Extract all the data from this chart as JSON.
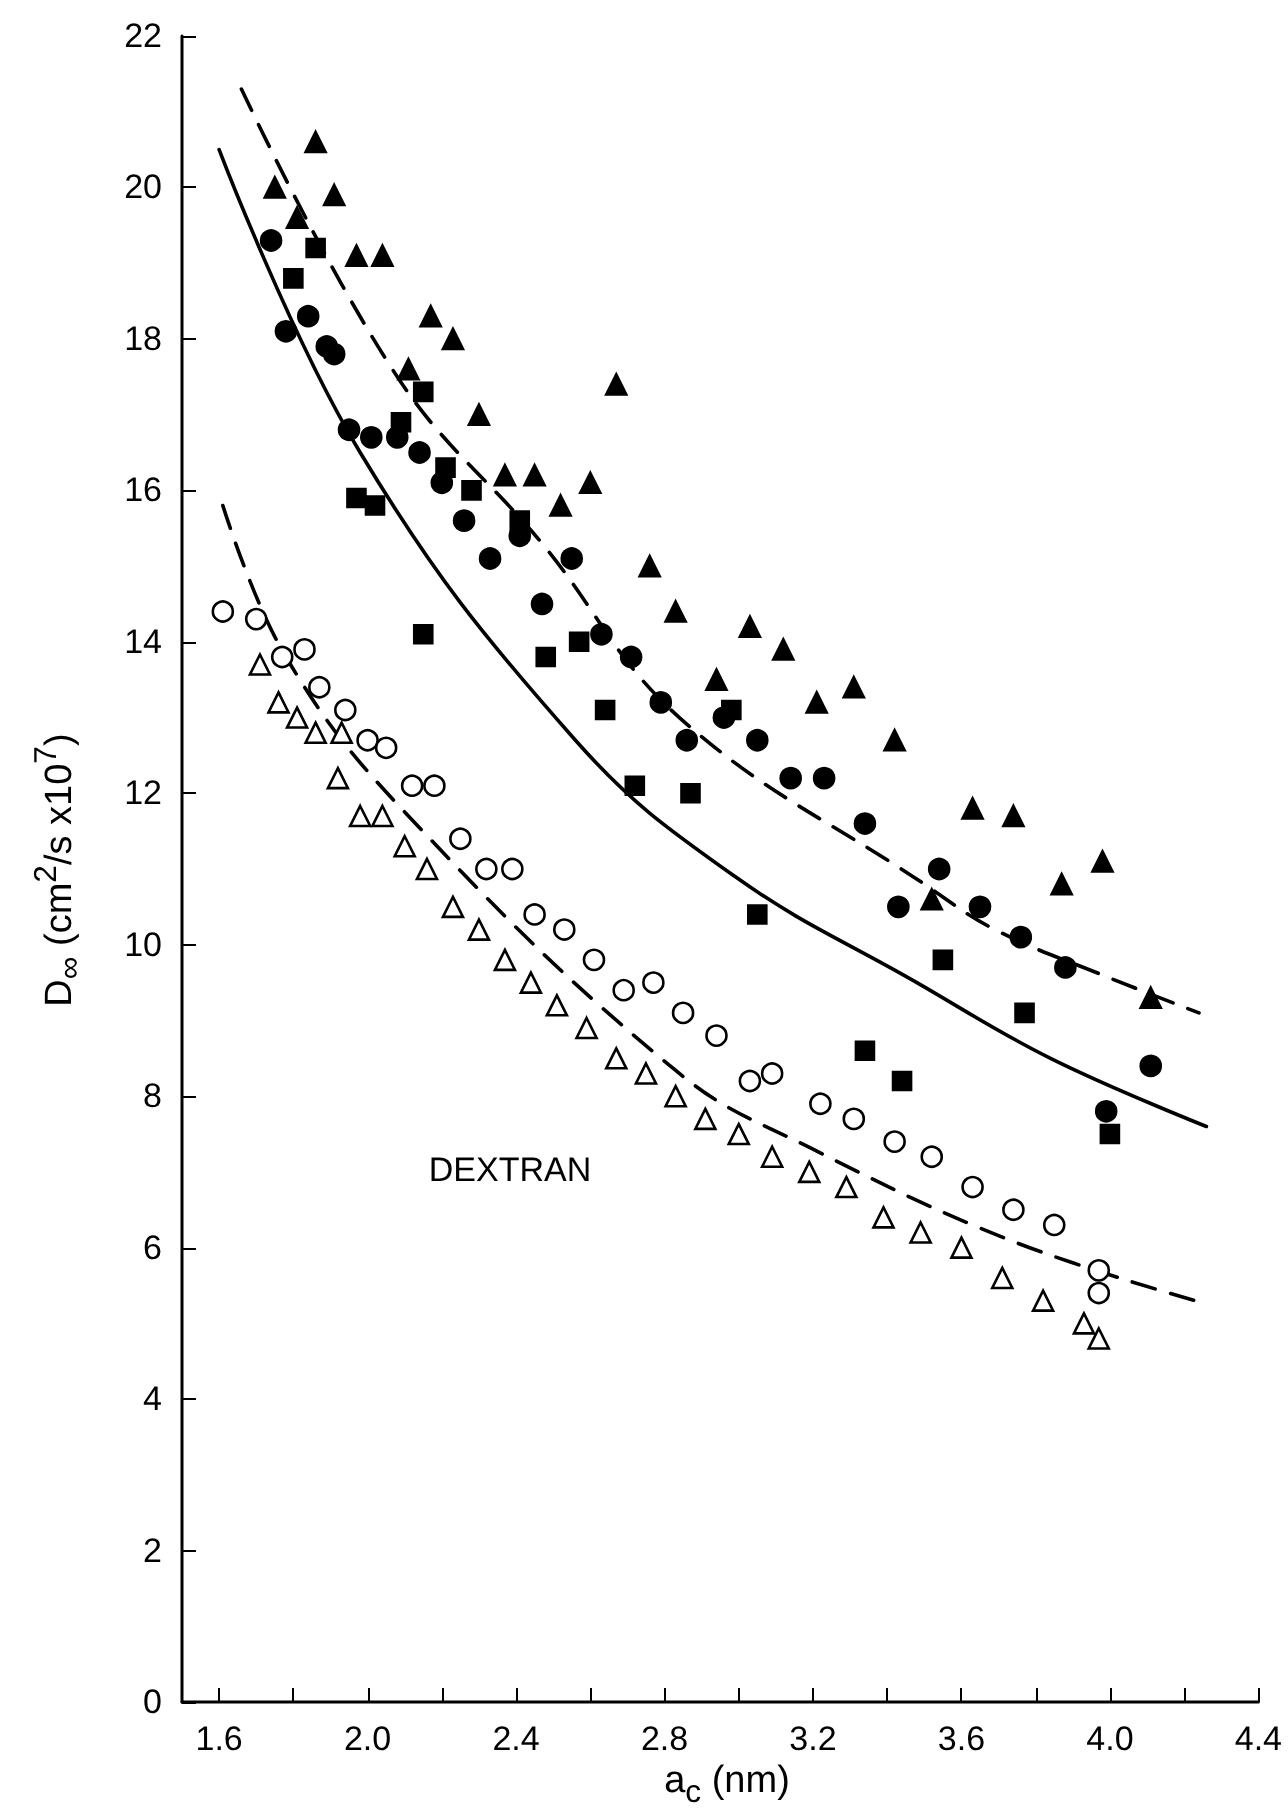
{
  "chart_data": {
    "type": "scatter",
    "xlabel": "a$_{c}$ (nm)",
    "ylabel": "D$_{∞}$ (cm$^{2}$/s x10$^{7}$)",
    "xlim": [
      1.5,
      4.4
    ],
    "xticks": [
      {
        "value": 1.6,
        "label": "1.6"
      },
      {
        "value": 1.8,
        "label": null
      },
      {
        "value": 2,
        "label": "2.0"
      },
      {
        "value": 2.2,
        "label": null
      },
      {
        "value": 2.4,
        "label": "2.4"
      },
      {
        "value": 2.6,
        "label": null
      },
      {
        "value": 2.8,
        "label": "2.8"
      },
      {
        "value": 3,
        "label": null
      },
      {
        "value": 3.2,
        "label": "3.2"
      },
      {
        "value": 3.4,
        "label": null
      },
      {
        "value": 3.6,
        "label": "3.6"
      },
      {
        "value": 3.8,
        "label": null
      },
      {
        "value": 4,
        "label": "4.0"
      },
      {
        "value": 4.2,
        "label": null
      },
      {
        "value": 4.4,
        "label": "4.4"
      }
    ],
    "ylim": [
      0,
      22
    ],
    "yticks": [
      0,
      2,
      4,
      6,
      8,
      10,
      12,
      14,
      16,
      18,
      20,
      22
    ],
    "grid": false,
    "annotations": [
      "DEXTRAN"
    ],
    "series": [
      {
        "marker": "triangle",
        "color": "#000000",
        "x": [
          1.75,
          1.81,
          1.86,
          1.91,
          1.97,
          2.04,
          2.11,
          2.17,
          2.23,
          2.3,
          2.37,
          2.45,
          2.52,
          2.6,
          2.67,
          2.76,
          2.83,
          2.94,
          3.03,
          3.12,
          3.21,
          3.31,
          3.42,
          3.52,
          3.63,
          3.74,
          3.87,
          3.98,
          4.11
        ],
        "values": [
          20.0,
          19.6,
          20.6,
          19.9,
          19.1,
          19.1,
          17.6,
          18.3,
          18.0,
          17.0,
          16.2,
          16.2,
          15.8,
          16.1,
          17.4,
          15.0,
          14.4,
          13.5,
          14.2,
          13.9,
          13.2,
          13.4,
          12.7,
          10.6,
          11.8,
          11.7,
          10.8,
          11.1,
          9.3
        ]
      },
      {
        "marker": "circle",
        "color": "#000000",
        "x": [
          1.74,
          1.78,
          1.84,
          1.89,
          1.91,
          1.95,
          2.01,
          2.08,
          2.14,
          2.2,
          2.26,
          2.33,
          2.41,
          2.47,
          2.55,
          2.63,
          2.71,
          2.79,
          2.86,
          2.96,
          3.05,
          3.14,
          3.23,
          3.34,
          3.43,
          3.54,
          3.65,
          3.76,
          3.88,
          3.99,
          4.11
        ],
        "values": [
          19.3,
          18.1,
          18.3,
          17.9,
          17.8,
          16.8,
          16.7,
          16.7,
          16.5,
          16.1,
          15.6,
          15.1,
          15.4,
          14.5,
          15.1,
          14.1,
          13.8,
          13.2,
          12.7,
          13.0,
          12.7,
          12.2,
          12.2,
          11.6,
          10.5,
          11.0,
          10.5,
          10.1,
          9.7,
          7.8,
          8.4
        ]
      },
      {
        "marker": "square",
        "color": "#000000",
        "x": [
          1.8,
          1.86,
          1.97,
          2.02,
          2.09,
          2.15,
          2.15,
          2.21,
          2.28,
          2.41,
          2.48,
          2.57,
          2.64,
          2.72,
          2.87,
          2.98,
          3.05,
          3.34,
          3.44,
          3.55,
          3.77,
          4.0
        ],
        "values": [
          18.8,
          19.2,
          15.9,
          15.8,
          16.9,
          17.3,
          14.1,
          16.3,
          16.0,
          15.6,
          13.8,
          14.0,
          13.1,
          12.1,
          12.0,
          13.1,
          10.4,
          8.6,
          8.2,
          9.8,
          9.1,
          7.5
        ]
      },
      {
        "marker": "circle",
        "color": "#ffffff",
        "x": [
          1.61,
          1.7,
          1.77,
          1.83,
          1.87,
          1.94,
          2.0,
          2.05,
          2.12,
          2.18,
          2.25,
          2.32,
          2.39,
          2.45,
          2.53,
          2.61,
          2.69,
          2.77,
          2.85,
          2.94,
          3.03,
          3.09,
          3.22,
          3.31,
          3.42,
          3.52,
          3.63,
          3.74,
          3.85,
          3.97,
          3.97
        ],
        "values": [
          14.4,
          14.3,
          13.8,
          13.9,
          13.4,
          13.1,
          12.7,
          12.6,
          12.1,
          12.1,
          11.4,
          11.0,
          11.0,
          10.4,
          10.2,
          9.8,
          9.4,
          9.5,
          9.1,
          8.8,
          8.2,
          8.3,
          7.9,
          7.7,
          7.4,
          7.2,
          6.8,
          6.5,
          6.3,
          5.7,
          5.4
        ]
      },
      {
        "marker": "triangle",
        "color": "#ffffff",
        "x": [
          1.71,
          1.76,
          1.81,
          1.86,
          1.92,
          1.93,
          1.98,
          2.04,
          2.1,
          2.16,
          2.23,
          2.3,
          2.37,
          2.44,
          2.51,
          2.59,
          2.67,
          2.75,
          2.83,
          2.91,
          3.0,
          3.09,
          3.19,
          3.29,
          3.39,
          3.49,
          3.6,
          3.71,
          3.82,
          3.93,
          3.97
        ],
        "values": [
          13.7,
          13.2,
          13.0,
          12.8,
          12.2,
          12.8,
          11.7,
          11.7,
          11.3,
          11.0,
          10.5,
          10.2,
          9.8,
          9.5,
          9.2,
          8.9,
          8.5,
          8.3,
          8.0,
          7.7,
          7.5,
          7.2,
          7.0,
          6.8,
          6.4,
          6.2,
          6.0,
          5.6,
          5.3,
          5.0,
          4.8
        ]
      },
      {
        "type": "line",
        "marker": "none",
        "line_style": "dashed",
        "color": "#000000",
        "x": [
          1.66,
          2.08,
          2.47,
          2.84,
          3.5,
          3.69,
          3.98,
          4.24
        ],
        "values": [
          21.3,
          17.5,
          15.3,
          13.0,
          10.8,
          10.2,
          9.6,
          9.1
        ]
      },
      {
        "type": "line",
        "marker": "none",
        "line_style": "solid",
        "color": "#000000",
        "x": [
          1.6,
          1.98,
          2.56,
          2.99,
          3.48,
          3.84,
          4.26
        ],
        "values": [
          20.5,
          16.5,
          12.7,
          10.9,
          9.5,
          8.5,
          7.6
        ]
      },
      {
        "type": "line",
        "marker": "none",
        "line_style": "dashed",
        "color": "#000000",
        "x": [
          1.61,
          1.78,
          2.11,
          2.84,
          3.2,
          3.73,
          4.23
        ],
        "values": [
          15.8,
          13.8,
          11.7,
          8.3,
          7.3,
          6.1,
          5.3
        ]
      }
    ]
  }
}
